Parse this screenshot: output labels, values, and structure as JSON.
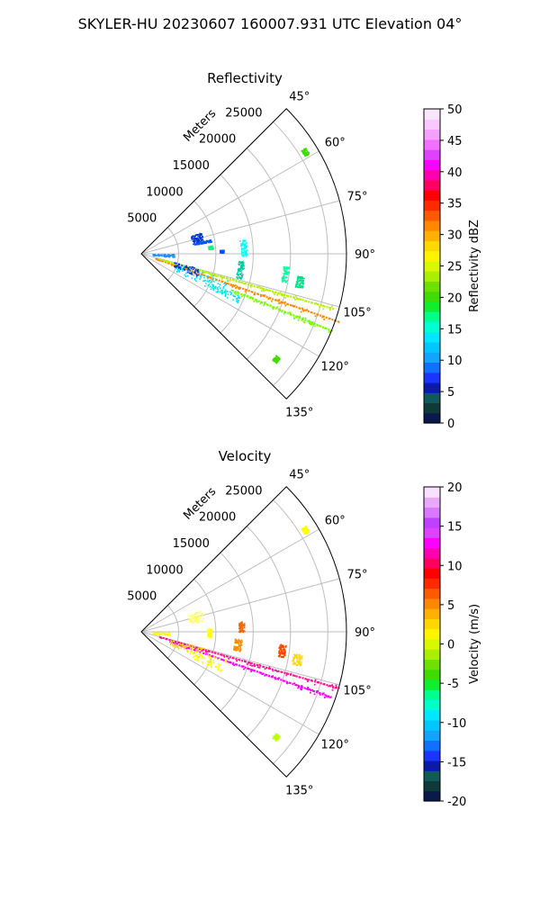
{
  "figure_title": "SKYLER-HU  20230607  160007.931 UTC Elevation 04°",
  "chart_data": [
    {
      "type": "polar-sector",
      "title": "Reflectivity",
      "range_label": "Meters",
      "theta_ticks": [
        "45°",
        "60°",
        "75°",
        "90°",
        "105°",
        "120°",
        "135°"
      ],
      "theta_values": [
        45,
        60,
        75,
        90,
        105,
        120,
        135
      ],
      "r_ticks": [
        "5000",
        "10000",
        "15000",
        "20000",
        "25000"
      ],
      "r_values": [
        5000,
        10000,
        15000,
        20000,
        25000
      ],
      "rlim": [
        0,
        27500
      ],
      "thetalim": [
        45,
        135
      ],
      "grid": true,
      "colorbar": {
        "label": "Reflectivity dBZ",
        "range": [
          0,
          50
        ],
        "ticks": [
          "0",
          "5",
          "10",
          "15",
          "20",
          "25",
          "30",
          "35",
          "40",
          "45",
          "50"
        ],
        "tick_values": [
          0,
          5,
          10,
          15,
          20,
          25,
          30,
          35,
          40,
          45,
          50
        ],
        "colors": [
          "#0a1a4a",
          "#0f3a3a",
          "#105a5a",
          "#0b1aa8",
          "#1b35ff",
          "#1270ff",
          "#10a6ff",
          "#00c8ff",
          "#00e8ff",
          "#00ffd0",
          "#00ff90",
          "#10ee30",
          "#40dc00",
          "#70e000",
          "#a8f000",
          "#d8f800",
          "#fff400",
          "#ffd800",
          "#ffb000",
          "#ff8800",
          "#ff5a00",
          "#ff2a00",
          "#ff0000",
          "#ff0060",
          "#ff00b0",
          "#ff00ff",
          "#e040ff",
          "#f070ff",
          "#f4a0ff",
          "#f8c8ff",
          "#fbe6ff"
        ]
      },
      "features": [
        {
          "kind": "line",
          "a0": 109,
          "r0": 2000,
          "r1": 28000,
          "c": "#ff8c00"
        },
        {
          "kind": "line",
          "a0": 106,
          "r0": 2500,
          "r1": 27000,
          "c": "#b8f000"
        },
        {
          "kind": "line",
          "a0": 112,
          "r0": 13000,
          "r1": 27500,
          "c": "#7cfc00"
        },
        {
          "kind": "blob",
          "a0": 70,
          "a1": 78,
          "r0": 7000,
          "r1": 8500,
          "c": "#0033cc"
        },
        {
          "kind": "blob",
          "a0": 78,
          "a1": 80,
          "r0": 7000,
          "r1": 9500,
          "c": "#0055ff"
        },
        {
          "kind": "blob",
          "a0": 90,
          "a1": 96,
          "r0": 1500,
          "r1": 4500,
          "c": "#1e90ff"
        },
        {
          "kind": "blob",
          "a0": 104,
          "a1": 112,
          "r0": 4500,
          "r1": 8000,
          "c": "#0033cc"
        },
        {
          "kind": "blob",
          "a0": 106,
          "a1": 117,
          "r0": 5000,
          "r1": 12500,
          "c": "#00e5ee"
        },
        {
          "kind": "blob",
          "a0": 113,
          "a1": 117,
          "r0": 10000,
          "r1": 14500,
          "c": "#00e5ee"
        },
        {
          "kind": "blob",
          "a0": 94,
          "a1": 104,
          "r0": 13000,
          "r1": 13800,
          "c": "#00c8a0"
        },
        {
          "kind": "blob",
          "a0": 82,
          "a1": 92,
          "r0": 13300,
          "r1": 14100,
          "c": "#00ffff"
        },
        {
          "kind": "blob",
          "a0": 95,
          "a1": 101,
          "r0": 19000,
          "r1": 19800,
          "c": "#00ffa0"
        },
        {
          "kind": "blob",
          "a0": 98,
          "a1": 102,
          "r0": 21000,
          "r1": 22000,
          "c": "#00dd88"
        },
        {
          "kind": "blob",
          "a0": 83,
          "a1": 86,
          "r0": 9000,
          "r1": 9600,
          "c": "#00ff7f"
        },
        {
          "kind": "blob",
          "a0": 87,
          "a1": 89,
          "r0": 10500,
          "r1": 11000,
          "c": "#0050ff"
        },
        {
          "kind": "blob",
          "a0": 57,
          "a1": 59,
          "r0": 25500,
          "r1": 26200,
          "c": "#40dc00"
        },
        {
          "kind": "blob",
          "a0": 127,
          "a1": 129,
          "r0": 22500,
          "r1": 23200,
          "c": "#40dc00"
        }
      ]
    },
    {
      "type": "polar-sector",
      "title": "Velocity",
      "range_label": "Meters",
      "theta_ticks": [
        "45°",
        "60°",
        "75°",
        "90°",
        "105°",
        "120°",
        "135°"
      ],
      "theta_values": [
        45,
        60,
        75,
        90,
        105,
        120,
        135
      ],
      "r_ticks": [
        "5000",
        "10000",
        "15000",
        "20000",
        "25000"
      ],
      "r_values": [
        5000,
        10000,
        15000,
        20000,
        25000
      ],
      "rlim": [
        0,
        27500
      ],
      "thetalim": [
        45,
        135
      ],
      "grid": true,
      "colorbar": {
        "label": "Velocity (m/s)",
        "range": [
          -20,
          20
        ],
        "ticks": [
          "-20",
          "-15",
          "-10",
          "-5",
          "0",
          "5",
          "10",
          "15",
          "20"
        ],
        "tick_values": [
          -20,
          -15,
          -10,
          -5,
          0,
          5,
          10,
          15,
          20
        ],
        "colors": [
          "#0a1a4a",
          "#0f3a3a",
          "#105a5a",
          "#0b1aa8",
          "#1b35ff",
          "#1270ff",
          "#10a6ff",
          "#00c8ff",
          "#00e8ff",
          "#00ffd0",
          "#00ff90",
          "#10ee30",
          "#40dc00",
          "#70e000",
          "#a8f000",
          "#d8f800",
          "#fff400",
          "#ffd800",
          "#ffb000",
          "#ff8800",
          "#ff5a00",
          "#ff2a00",
          "#ff0000",
          "#ff0060",
          "#ff00b0",
          "#ff00ff",
          "#e040ff",
          "#c040ff",
          "#d878ff",
          "#eaa8ff",
          "#f8e0ff"
        ]
      },
      "features": [
        {
          "kind": "line",
          "a0": 106,
          "r0": 2500,
          "r1": 27500,
          "c": "#ff1493"
        },
        {
          "kind": "line",
          "a0": 109,
          "r0": 4000,
          "r1": 27000,
          "c": "#ff00ff"
        },
        {
          "kind": "blob",
          "a0": 104,
          "a1": 114,
          "r0": 4000,
          "r1": 8500,
          "c": "#ffd700"
        },
        {
          "kind": "blob",
          "a0": 108,
          "a1": 117,
          "r0": 7000,
          "r1": 12000,
          "c": "#ffff00"
        },
        {
          "kind": "blob",
          "a0": 70,
          "a1": 80,
          "r0": 6500,
          "r1": 8500,
          "c": "#ffff66"
        },
        {
          "kind": "blob",
          "a0": 94,
          "a1": 101,
          "r0": 12500,
          "r1": 13500,
          "c": "#ff8c00"
        },
        {
          "kind": "blob",
          "a0": 84,
          "a1": 90,
          "r0": 13000,
          "r1": 13800,
          "c": "#ff6600"
        },
        {
          "kind": "blob",
          "a0": 98,
          "a1": 102,
          "r0": 20500,
          "r1": 21800,
          "c": "#ffd700"
        },
        {
          "kind": "blob",
          "a0": 95,
          "a1": 100,
          "r0": 18500,
          "r1": 19400,
          "c": "#ff4500"
        },
        {
          "kind": "blob",
          "a0": 87,
          "a1": 94,
          "r0": 8800,
          "r1": 9400,
          "c": "#ffff00"
        },
        {
          "kind": "blob",
          "a0": 91,
          "a1": 97,
          "r0": 1500,
          "r1": 3800,
          "c": "#ffff00"
        },
        {
          "kind": "blob",
          "a0": 57,
          "a1": 59,
          "r0": 25500,
          "r1": 26200,
          "c": "#ffff00"
        },
        {
          "kind": "blob",
          "a0": 127,
          "a1": 129,
          "r0": 22500,
          "r1": 23200,
          "c": "#c0ff00"
        }
      ]
    }
  ]
}
